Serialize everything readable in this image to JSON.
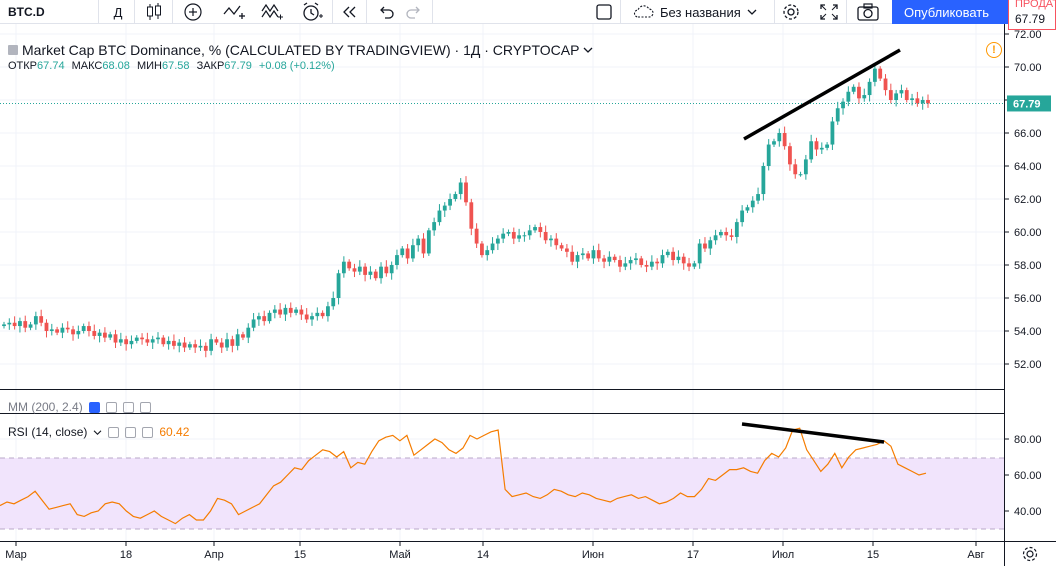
{
  "toolbar": {
    "symbol": "BTC.D",
    "interval": "Д",
    "layout_name": "Без названия",
    "publish_label": "Опубликовать",
    "sell_label": "ПРОДАТЬ",
    "sell_price": "67.79",
    "icons": [
      "candles-icon",
      "add-indicator-icon",
      "line-tools-icon",
      "patterns-icon",
      "alert-icon",
      "replay-icon",
      "undo-icon",
      "redo-icon",
      "square-icon",
      "cloud-icon",
      "chevron-down-icon",
      "gear-icon",
      "fullscreen-icon",
      "camera-icon"
    ]
  },
  "legend": {
    "title": "Market Cap BTC Dominance, % (CALCULATED BY TRADINGVIEW) · 1Д · CRYPTOCAP",
    "open_label": "ОТКР",
    "open": "67.74",
    "high_label": "МАКС",
    "high": "68.08",
    "low_label": "МИН",
    "low": "67.58",
    "close_label": "ЗАКР",
    "close": "67.79",
    "change": "+0.08 (+0.12%)",
    "warning": "!"
  },
  "indicators": {
    "ma_label": "MM (200, 2.4)",
    "rsi_label": "RSI (14, close)",
    "rsi_value": "60.42"
  },
  "price_axis": {
    "ticks": [
      "72.00",
      "70.00",
      "68.00",
      "66.00",
      "64.00",
      "62.00",
      "60.00",
      "58.00",
      "56.00",
      "54.00",
      "52.00"
    ],
    "last_price": "67.79"
  },
  "rsi_axis": {
    "ticks": [
      "80.00",
      "60.00",
      "40.00"
    ]
  },
  "time_axis": {
    "labels": [
      "Мар",
      "18",
      "Апр",
      "15",
      "Май",
      "14",
      "Июн",
      "17",
      "Июл",
      "15",
      "Авг"
    ]
  },
  "colors": {
    "up": "#26a69a",
    "down": "#ef5350",
    "rsi": "#f57c00",
    "rsi_band": "#f1e4fc",
    "publish": "#2962ff"
  },
  "chart_data": [
    {
      "type": "candlestick",
      "title": "Market Cap BTC Dominance, % (CALCULATED BY TRADINGVIEW)",
      "ylim": [
        51,
        72
      ],
      "x_range": [
        "Мар",
        "Авг"
      ],
      "close": [
        54.4,
        54.5,
        54.3,
        54.6,
        54.2,
        54.4,
        54.9,
        54.5,
        54.0,
        54.1,
        53.9,
        54.2,
        54.1,
        53.8,
        54.0,
        54.3,
        54.0,
        53.7,
        53.9,
        53.6,
        53.8,
        53.3,
        53.5,
        53.2,
        53.4,
        53.6,
        53.5,
        53.3,
        53.5,
        53.6,
        53.2,
        53.4,
        53.1,
        53.3,
        53.0,
        53.2,
        53.0,
        53.1,
        52.8,
        53.5,
        53.3,
        53.0,
        53.5,
        53.1,
        53.8,
        53.6,
        54.2,
        54.7,
        54.9,
        54.6,
        55.1,
        55.3,
        55.0,
        55.4,
        55.1,
        55.3,
        55.0,
        54.7,
        54.9,
        55.1,
        54.9,
        55.5,
        56.0,
        57.5,
        58.2,
        57.8,
        57.6,
        57.9,
        57.4,
        57.6,
        57.2,
        57.9,
        57.5,
        58.0,
        58.6,
        59.0,
        58.4,
        59.2,
        59.6,
        58.7,
        60.1,
        60.6,
        61.3,
        61.6,
        62.0,
        62.3,
        63.0,
        61.8,
        60.2,
        59.3,
        58.6,
        58.9,
        59.3,
        59.6,
        59.9,
        60.0,
        59.6,
        59.8,
        59.8,
        60.1,
        60.3,
        60.0,
        59.5,
        59.6,
        59.2,
        59.0,
        58.8,
        58.2,
        58.6,
        58.7,
        58.4,
        58.9,
        58.4,
        58.2,
        58.5,
        58.3,
        57.9,
        58.1,
        58.3,
        58.4,
        58.0,
        57.9,
        58.2,
        58.1,
        58.6,
        58.8,
        58.3,
        58.5,
        58.1,
        57.9,
        58.1,
        59.3,
        59.0,
        59.5,
        59.8,
        60.0,
        59.8,
        59.7,
        60.6,
        61.3,
        61.5,
        61.9,
        62.3,
        64.0,
        65.3,
        65.5,
        66.0,
        65.2,
        64.1,
        63.5,
        63.5,
        64.4,
        65.5,
        65.0,
        65.1,
        65.3,
        66.7,
        67.5,
        67.9,
        68.5,
        68.8,
        68.1,
        68.3,
        69.1,
        69.9,
        69.3,
        68.6,
        68.0,
        68.4,
        68.6,
        68.0,
        68.1,
        67.8,
        68.0,
        67.79
      ]
    },
    {
      "type": "line",
      "title": "RSI (14, close)",
      "ylim": [
        30,
        90
      ],
      "reference_lines": [
        30,
        70
      ],
      "values": [
        43,
        45,
        44,
        46,
        48,
        51,
        46,
        41,
        42,
        43,
        44,
        38,
        37,
        39,
        40,
        44,
        45,
        44,
        40,
        37,
        36,
        38,
        40,
        37,
        35,
        33,
        36,
        38,
        35,
        35,
        40,
        47,
        46,
        44,
        38,
        40,
        42,
        44,
        49,
        54,
        56,
        60,
        64,
        63,
        68,
        71,
        74,
        73,
        70,
        73,
        64,
        67,
        66,
        73,
        79,
        81,
        82,
        79,
        82,
        71,
        74,
        77,
        80,
        78,
        74,
        72,
        75,
        82,
        80,
        82,
        84,
        85,
        52,
        48,
        49,
        50,
        48,
        47,
        49,
        52,
        51,
        49,
        48,
        50,
        49,
        47,
        46,
        45,
        47,
        48,
        49,
        47,
        48,
        46,
        44,
        45,
        47,
        50,
        48,
        48,
        52,
        58,
        57,
        60,
        63,
        63,
        64,
        62,
        61,
        68,
        72,
        70,
        75,
        85,
        86,
        74,
        68,
        62,
        66,
        72,
        64,
        70,
        74,
        75,
        76,
        77,
        79,
        76,
        66,
        64,
        62,
        60,
        61
      ]
    }
  ]
}
